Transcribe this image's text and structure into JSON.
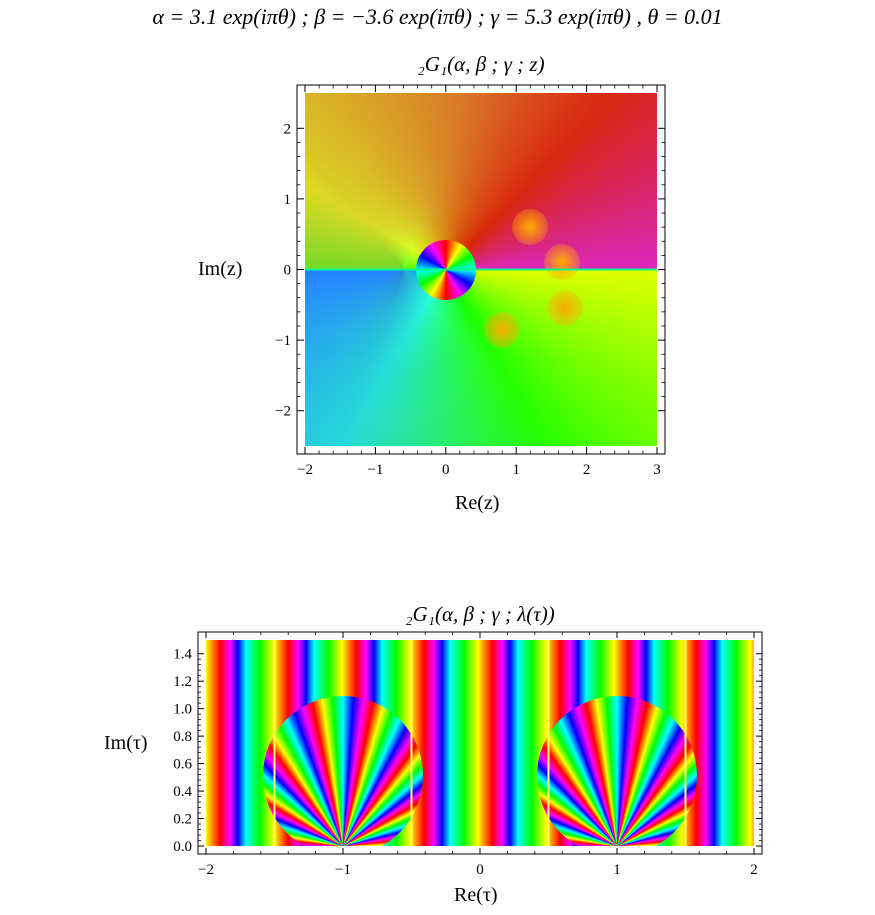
{
  "header": {
    "params": "α = 3.1 exp(iπθ) ;   β = −3.6 exp(iπθ) ;   γ = 5.3 exp(iπθ) ,   θ = 0.01"
  },
  "chart_data": [
    {
      "type": "heatmap",
      "title": "₂G₁(α, β ; γ ; z)",
      "xlabel": "Re(z)",
      "ylabel": "Im(z)",
      "xlim": [
        -2,
        3
      ],
      "ylim": [
        -2.5,
        2.5
      ],
      "x_ticks": [
        -2,
        -1,
        0,
        1,
        2,
        3
      ],
      "x_tick_labels": [
        "−2",
        "−1",
        "0",
        "1",
        "2",
        "3"
      ],
      "y_ticks": [
        -2,
        -1,
        0,
        1,
        2
      ],
      "y_tick_labels": [
        "−2",
        "−1",
        "0",
        "1",
        "2"
      ],
      "coloring": "phase (argument) mapped to hue wheel",
      "features": [
        {
          "kind": "singular point",
          "re": 0.0,
          "im": 0.0
        },
        {
          "kind": "zero",
          "re": 1.2,
          "im": 0.6
        },
        {
          "kind": "zero",
          "re": 0.8,
          "im": -0.85
        },
        {
          "kind": "zero",
          "re": 1.65,
          "im": 0.1
        },
        {
          "kind": "zero",
          "re": 1.7,
          "im": -0.55
        },
        {
          "kind": "branch cut",
          "from_re": -2,
          "to_re": 3,
          "im": 0
        }
      ]
    },
    {
      "type": "heatmap",
      "title": "₂G₁(α, β ; γ ; λ(τ))",
      "xlabel": "Re(τ)",
      "ylabel": "Im(τ)",
      "xlim": [
        -2,
        2
      ],
      "ylim": [
        0,
        1.5
      ],
      "x_ticks": [
        -2,
        -1,
        0,
        1,
        2
      ],
      "x_tick_labels": [
        "−2",
        "−1",
        "0",
        "1",
        "2"
      ],
      "y_ticks": [
        0,
        0.2,
        0.4,
        0.6,
        0.8,
        1.0,
        1.2,
        1.4
      ],
      "y_tick_labels": [
        "0.0",
        "0.2",
        "0.4",
        "0.6",
        "0.8",
        "1.0",
        "1.2",
        "1.4"
      ],
      "coloring": "phase (argument) mapped to hue wheel",
      "features": [
        {
          "kind": "fractal cusp cluster",
          "re": -1,
          "im": 0
        },
        {
          "kind": "fractal cusp cluster",
          "re": 1,
          "im": 0
        },
        {
          "kind": "vertical boundary",
          "re": -1.5
        },
        {
          "kind": "vertical boundary",
          "re": -0.5
        },
        {
          "kind": "vertical boundary",
          "re": 0.5
        },
        {
          "kind": "vertical boundary",
          "re": 1.5
        }
      ]
    }
  ]
}
